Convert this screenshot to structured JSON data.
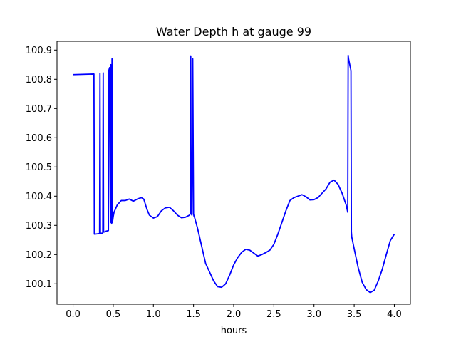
{
  "chart_data": {
    "type": "line",
    "title": "Water Depth h at gauge 99",
    "xlabel": "hours",
    "ylabel": "",
    "xlim": [
      -0.2,
      4.2
    ],
    "ylim": [
      100.03,
      100.93
    ],
    "grid": false,
    "line_color": "#0000ff",
    "x_ticks": [
      0.0,
      0.5,
      1.0,
      1.5,
      2.0,
      2.5,
      3.0,
      3.5,
      4.0
    ],
    "x_tick_labels": [
      "0.0",
      "0.5",
      "1.0",
      "1.5",
      "2.0",
      "2.5",
      "3.0",
      "3.5",
      "4.0"
    ],
    "y_ticks": [
      100.1,
      100.2,
      100.3,
      100.4,
      100.5,
      100.6,
      100.7,
      100.8,
      100.9
    ],
    "y_tick_labels": [
      "100.1",
      "100.2",
      "100.3",
      "100.4",
      "100.5",
      "100.6",
      "100.7",
      "100.8",
      "100.9"
    ],
    "series": [
      {
        "x": [
          0.0,
          0.26,
          0.265,
          0.27,
          0.33,
          0.335,
          0.34,
          0.37,
          0.375,
          0.38,
          0.4,
          0.41,
          0.44,
          0.445,
          0.455,
          0.465,
          0.47,
          0.48,
          0.485,
          0.49,
          0.495,
          0.5,
          0.51,
          0.55,
          0.6,
          0.65,
          0.7,
          0.75,
          0.8,
          0.85,
          0.88,
          0.92,
          0.95,
          1.0,
          1.05,
          1.1,
          1.15,
          1.2,
          1.25,
          1.3,
          1.35,
          1.4,
          1.45,
          1.46,
          1.465,
          1.47,
          1.48,
          1.49,
          1.5,
          1.505,
          1.51,
          1.52,
          1.55,
          1.6,
          1.65,
          1.7,
          1.75,
          1.8,
          1.85,
          1.9,
          1.95,
          2.0,
          2.05,
          2.1,
          2.15,
          2.2,
          2.25,
          2.3,
          2.35,
          2.4,
          2.45,
          2.5,
          2.55,
          2.6,
          2.65,
          2.7,
          2.75,
          2.8,
          2.85,
          2.9,
          2.95,
          3.0,
          3.05,
          3.1,
          3.15,
          3.2,
          3.25,
          3.3,
          3.35,
          3.4,
          3.42,
          3.425,
          3.43,
          3.46,
          3.465,
          3.47,
          3.5,
          3.55,
          3.6,
          3.65,
          3.7,
          3.75,
          3.8,
          3.85,
          3.9,
          3.95,
          4.0
        ],
        "y": [
          100.816,
          100.818,
          100.27,
          100.27,
          100.272,
          100.82,
          100.272,
          100.274,
          100.822,
          100.277,
          100.278,
          100.28,
          100.282,
          100.83,
          100.84,
          100.31,
          100.85,
          100.305,
          100.87,
          100.31,
          100.32,
          100.33,
          100.345,
          100.37,
          100.385,
          100.385,
          100.39,
          100.383,
          100.39,
          100.395,
          100.39,
          100.355,
          100.335,
          100.325,
          100.33,
          100.35,
          100.36,
          100.362,
          100.35,
          100.335,
          100.326,
          100.328,
          100.335,
          100.34,
          100.88,
          100.34,
          100.335,
          100.87,
          100.34,
          100.332,
          100.33,
          100.32,
          100.29,
          100.23,
          100.17,
          100.14,
          100.11,
          100.09,
          100.088,
          100.1,
          100.13,
          100.165,
          100.19,
          100.208,
          100.218,
          100.215,
          100.205,
          100.195,
          100.2,
          100.207,
          100.215,
          100.235,
          100.27,
          100.31,
          100.35,
          100.385,
          100.395,
          100.4,
          100.405,
          100.398,
          100.387,
          100.388,
          100.395,
          100.41,
          100.425,
          100.448,
          100.455,
          100.44,
          100.41,
          100.37,
          100.345,
          100.882,
          100.87,
          100.83,
          100.278,
          100.26,
          100.22,
          100.155,
          100.105,
          100.08,
          100.07,
          100.078,
          100.11,
          100.15,
          100.2,
          100.248,
          100.27
        ]
      }
    ]
  }
}
